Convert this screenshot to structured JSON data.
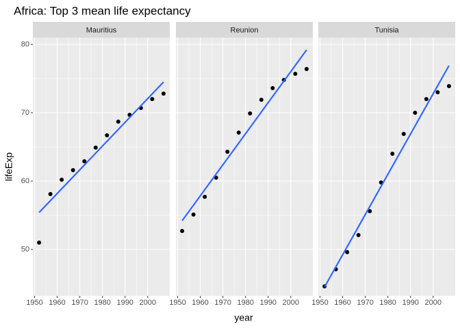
{
  "title": "Africa: Top 3 mean life expectancy",
  "xlabel": "year",
  "ylabel": "lifeExp",
  "chart_data": [
    {
      "type": "scatter",
      "title": "Mauritius",
      "color": "#000000",
      "x": [
        1952,
        1957,
        1962,
        1967,
        1972,
        1977,
        1982,
        1987,
        1992,
        1997,
        2002,
        2007
      ],
      "values": [
        51.0,
        58.1,
        60.2,
        61.6,
        62.9,
        64.9,
        66.7,
        68.7,
        69.7,
        70.7,
        72.0,
        72.8
      ],
      "trend": {
        "color": "#3366ff",
        "x": [
          1952,
          2007
        ],
        "values": [
          55.4,
          74.5
        ]
      },
      "xlim": [
        1949.25,
        2009.75
      ],
      "xticks": [
        1950,
        1960,
        1970,
        1980,
        1990,
        2000
      ],
      "ylim": [
        43.2,
        81.0
      ],
      "yticks": [
        50,
        60,
        70,
        80
      ],
      "grid": true
    },
    {
      "type": "scatter",
      "title": "Reunion",
      "color": "#000000",
      "x": [
        1952,
        1957,
        1962,
        1967,
        1972,
        1977,
        1982,
        1987,
        1992,
        1997,
        2002,
        2007
      ],
      "values": [
        52.7,
        55.1,
        57.7,
        60.5,
        64.3,
        67.1,
        69.9,
        71.9,
        73.6,
        74.8,
        75.7,
        76.4
      ],
      "trend": {
        "color": "#3366ff",
        "x": [
          1952,
          2007
        ],
        "values": [
          54.2,
          79.2
        ]
      },
      "xlim": [
        1949.25,
        2009.75
      ],
      "xticks": [
        1950,
        1960,
        1970,
        1980,
        1990,
        2000
      ],
      "ylim": [
        43.2,
        81.0
      ],
      "yticks": [
        50,
        60,
        70,
        80
      ],
      "grid": true
    },
    {
      "type": "scatter",
      "title": "Tunisia",
      "color": "#000000",
      "x": [
        1952,
        1957,
        1962,
        1967,
        1972,
        1977,
        1982,
        1987,
        1992,
        1997,
        2002,
        2007
      ],
      "values": [
        44.6,
        47.1,
        49.6,
        52.1,
        55.6,
        59.8,
        64.0,
        66.9,
        70.0,
        72.0,
        73.0,
        73.9
      ],
      "trend": {
        "color": "#3366ff",
        "x": [
          1952,
          2007
        ],
        "values": [
          44.5,
          76.9
        ]
      },
      "xlim": [
        1949.25,
        2009.75
      ],
      "xticks": [
        1950,
        1960,
        1970,
        1980,
        1990,
        2000
      ],
      "ylim": [
        43.2,
        81.0
      ],
      "yticks": [
        50,
        60,
        70,
        80
      ],
      "grid": true
    }
  ]
}
